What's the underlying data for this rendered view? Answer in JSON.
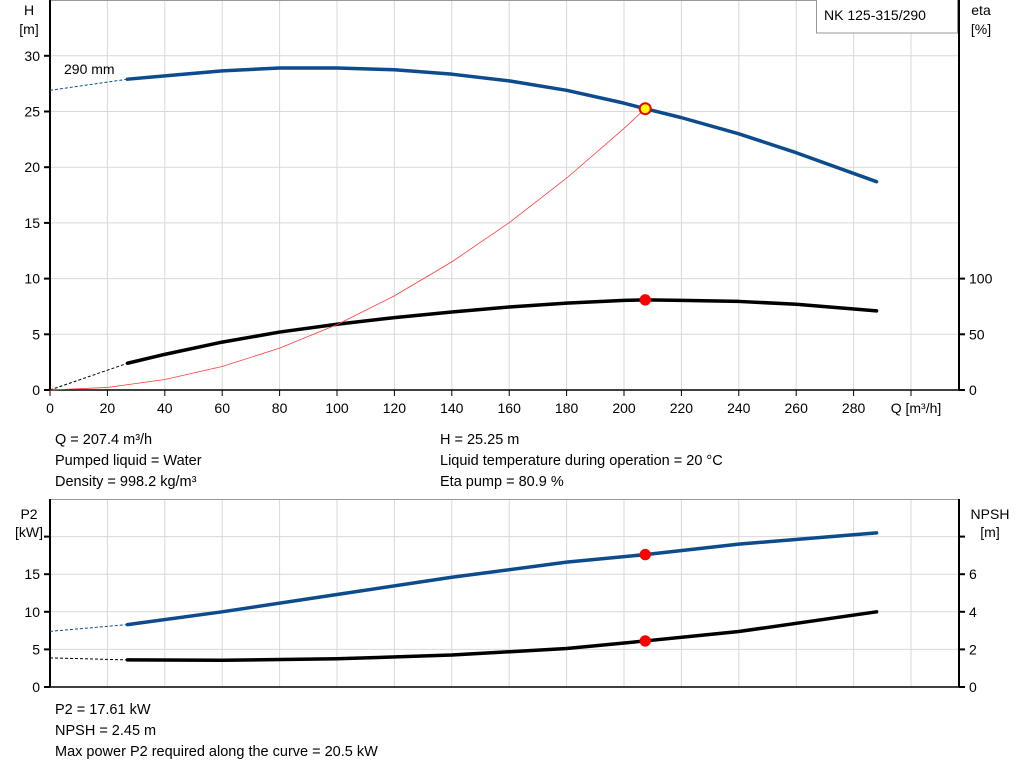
{
  "chart_data": [
    {
      "type": "line",
      "title": "NK 125-315/290",
      "xlabel": "Q [m³/h]",
      "ylabel": "H\n[m]",
      "y2label": "eta\n[%]",
      "xlim": [
        0,
        317
      ],
      "ylim": [
        0,
        35
      ],
      "y2lim": [
        0,
        350
      ],
      "grid": true,
      "x_ticks": [
        0,
        20,
        40,
        60,
        80,
        100,
        120,
        140,
        160,
        180,
        200,
        220,
        240,
        260,
        280
      ],
      "y_ticks": [
        0,
        5,
        10,
        15,
        20,
        25,
        30
      ],
      "y2_ticks": [
        0,
        50,
        100
      ],
      "curve_label": "290 mm",
      "series": [
        {
          "key": "head",
          "color": "#0d4c8c",
          "axis": "left",
          "x": [
            27,
            40,
            60,
            80,
            100,
            120,
            140,
            160,
            180,
            200,
            207.4,
            220,
            240,
            260,
            288
          ],
          "y": [
            27.9,
            28.2,
            28.65,
            28.9,
            28.9,
            28.75,
            28.35,
            27.75,
            26.9,
            25.75,
            25.25,
            24.45,
            23.0,
            21.3,
            18.7
          ],
          "extrapolated": {
            "x": [
              0,
              27
            ],
            "y": [
              26.9,
              27.9
            ]
          }
        },
        {
          "key": "eta",
          "color": "#000000",
          "axis": "right",
          "x": [
            27,
            40,
            60,
            80,
            100,
            120,
            140,
            160,
            180,
            200,
            207.4,
            220,
            240,
            260,
            288
          ],
          "y": [
            24,
            32,
            43,
            52,
            59,
            65,
            70,
            74.5,
            78,
            80.5,
            80.9,
            80.5,
            79.5,
            77,
            71
          ],
          "extrapolated": {
            "x": [
              0,
              27
            ],
            "y": [
              0,
              24
            ]
          }
        },
        {
          "key": "system",
          "color": "#ff3b3b",
          "axis": "left",
          "x": [
            0,
            20,
            40,
            60,
            80,
            100,
            120,
            140,
            160,
            180,
            200,
            207.4
          ],
          "y": [
            0,
            0.23,
            0.94,
            2.11,
            3.76,
            5.87,
            8.45,
            11.5,
            15.02,
            19.02,
            23.48,
            25.25
          ]
        }
      ],
      "operating_points": [
        {
          "x": 207.4,
          "y": 25.25,
          "color": "#ffff00",
          "axis": "left"
        },
        {
          "x": 207.4,
          "y": 80.9,
          "color": "#ff0000",
          "axis": "right"
        }
      ]
    },
    {
      "type": "line",
      "xlabel": "",
      "ylabel": "P2\n[kW]",
      "y2label": "NPSH\n[m]",
      "xlim": [
        0,
        317
      ],
      "ylim": [
        0,
        25
      ],
      "y2lim": [
        0,
        10
      ],
      "grid": true,
      "y_ticks": [
        0,
        5,
        10,
        15,
        20
      ],
      "y_tick_labels": [
        "0",
        "5",
        "10",
        "15",
        ""
      ],
      "y2_ticks": [
        0,
        2,
        4,
        6,
        8
      ],
      "y2_tick_labels": [
        "0",
        "2",
        "4",
        "6",
        ""
      ],
      "series": [
        {
          "key": "p2",
          "color": "#0d4c8c",
          "axis": "left",
          "x": [
            27,
            60,
            100,
            140,
            180,
            207.4,
            240,
            288
          ],
          "y": [
            8.3,
            10.0,
            12.3,
            14.6,
            16.6,
            17.61,
            19.0,
            20.5
          ],
          "extrapolated": {
            "x": [
              0,
              27
            ],
            "y": [
              7.4,
              8.3
            ]
          }
        },
        {
          "key": "npsh",
          "color": "#000000",
          "axis": "right",
          "x": [
            27,
            60,
            100,
            140,
            180,
            207.4,
            240,
            288
          ],
          "y": [
            1.44,
            1.42,
            1.5,
            1.7,
            2.05,
            2.45,
            2.95,
            4.0
          ],
          "extrapolated": {
            "x": [
              0,
              27
            ],
            "y": [
              1.55,
              1.44
            ]
          }
        }
      ],
      "operating_points": [
        {
          "x": 207.4,
          "y": 17.61,
          "color": "#ff0000",
          "axis": "left"
        },
        {
          "x": 207.4,
          "y": 2.45,
          "color": "#ff0000",
          "axis": "right"
        }
      ]
    }
  ],
  "info_top": {
    "left": [
      "Q = 207.4 m³/h",
      "Pumped liquid = Water",
      "Density = 998.2 kg/m³"
    ],
    "right": [
      "H = 25.25 m",
      "Liquid temperature during operation = 20 °C",
      "Eta pump = 80.9 %"
    ]
  },
  "info_bottom": [
    "P2 = 17.61 kW",
    "NPSH = 2.45 m",
    "Max power P2 required along the curve = 20.5 kW"
  ]
}
